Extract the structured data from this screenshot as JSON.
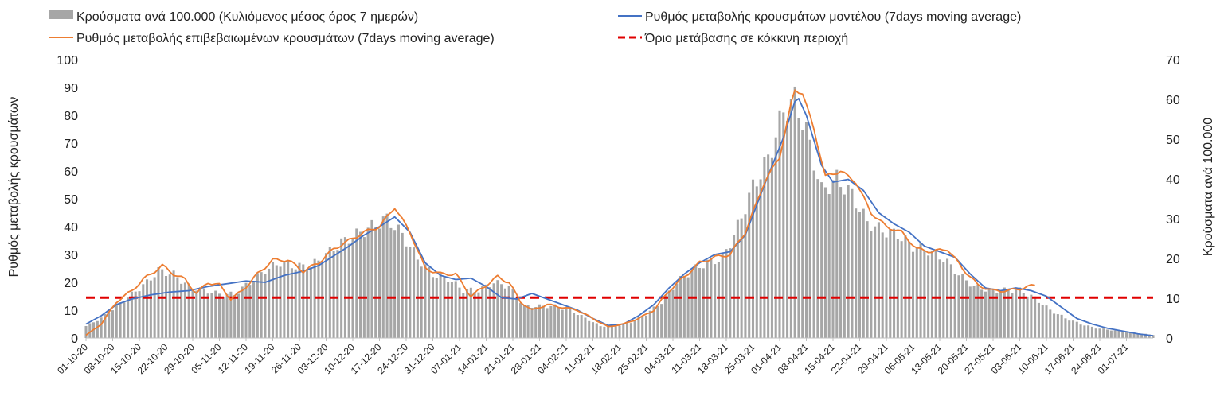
{
  "chart_data": {
    "type": "bar+line",
    "title": "",
    "legend": [
      {
        "key": "bars",
        "label": "Κρούσματα ανά 100.000 (Κυλιόμενος μέσος όρος 7 ημερών)",
        "color": "#a6a6a6",
        "kind": "bar"
      },
      {
        "key": "model",
        "label": "Ρυθμός μεταβολής κρουσμάτων μοντέλου (7days moving average)",
        "color": "#4472c4",
        "kind": "line"
      },
      {
        "key": "confirmed",
        "label": "Ρυθμός μεταβολής επιβεβαιωμένων κρουσμάτων (7days moving average)",
        "color": "#ed7d31",
        "kind": "line"
      },
      {
        "key": "threshold",
        "label": "Όριο μετάβασης σε κόκκινη περιοχή",
        "color": "#e00000",
        "kind": "dashed"
      }
    ],
    "ylabel_left": "Ρυθμός μεταβολής κρουσμάτων",
    "ylabel_right": "Κρούσματα ανά 100.000",
    "ylim_left": [
      0,
      100
    ],
    "yticks_left": [
      0,
      10,
      20,
      30,
      40,
      50,
      60,
      70,
      80,
      90,
      100
    ],
    "ylim_right": [
      0,
      70
    ],
    "yticks_right": [
      0,
      10,
      20,
      30,
      40,
      50,
      60,
      70
    ],
    "x_start": "2020-10-01",
    "x_end": "2021-07-08",
    "x_tick_labels": [
      "01-10-20",
      "08-10-20",
      "15-10-20",
      "22-10-20",
      "29-10-20",
      "05-11-20",
      "12-11-20",
      "19-11-20",
      "26-11-20",
      "03-12-20",
      "10-12-20",
      "17-12-20",
      "24-12-20",
      "31-12-20",
      "07-01-21",
      "14-01-21",
      "21-01-21",
      "28-01-21",
      "04-02-21",
      "11-02-21",
      "18-02-21",
      "25-02-21",
      "04-03-21",
      "11-03-21",
      "18-03-21",
      "25-03-21",
      "01-04-21",
      "08-04-21",
      "15-04-21",
      "22-04-21",
      "29-04-21",
      "06-05-21",
      "13-05-21",
      "20-05-21",
      "27-05-21",
      "03-06-21",
      "10-06-21",
      "17-06-21",
      "24-06-21",
      "01-07-21"
    ],
    "threshold_value": 14.5,
    "model_series": {
      "axis": "left",
      "points": [
        [
          "2020-10-01",
          5
        ],
        [
          "2020-10-05",
          8
        ],
        [
          "2020-10-09",
          12
        ],
        [
          "2020-10-13",
          14
        ],
        [
          "2020-10-18",
          15.5
        ],
        [
          "2020-10-23",
          16.5
        ],
        [
          "2020-10-28",
          17
        ],
        [
          "2020-11-02",
          18.5
        ],
        [
          "2020-11-07",
          19.5
        ],
        [
          "2020-11-12",
          20.5
        ],
        [
          "2020-11-17",
          20
        ],
        [
          "2020-11-22",
          22.5
        ],
        [
          "2020-11-27",
          24
        ],
        [
          "2020-12-01",
          26
        ],
        [
          "2020-12-05",
          29.5
        ],
        [
          "2020-12-09",
          33
        ],
        [
          "2020-12-13",
          37
        ],
        [
          "2020-12-17",
          40
        ],
        [
          "2020-12-21",
          43.5
        ],
        [
          "2020-12-25",
          38
        ],
        [
          "2020-12-29",
          27
        ],
        [
          "2021-01-02",
          22.5
        ],
        [
          "2021-01-06",
          21
        ],
        [
          "2021-01-10",
          21.5
        ],
        [
          "2021-01-14",
          18.5
        ],
        [
          "2021-01-18",
          14.5
        ],
        [
          "2021-01-22",
          14
        ],
        [
          "2021-01-26",
          16
        ],
        [
          "2021-01-30",
          14
        ],
        [
          "2021-02-03",
          12
        ],
        [
          "2021-02-07",
          10
        ],
        [
          "2021-02-11",
          7
        ],
        [
          "2021-02-15",
          4.5
        ],
        [
          "2021-02-19",
          5
        ],
        [
          "2021-02-23",
          8
        ],
        [
          "2021-02-27",
          12
        ],
        [
          "2021-03-03",
          18
        ],
        [
          "2021-03-07",
          23
        ],
        [
          "2021-03-11",
          27
        ],
        [
          "2021-03-15",
          30
        ],
        [
          "2021-03-19",
          31
        ],
        [
          "2021-03-23",
          37
        ],
        [
          "2021-03-28",
          55
        ],
        [
          "2021-04-02",
          72
        ],
        [
          "2021-04-05",
          85
        ],
        [
          "2021-04-06",
          86
        ],
        [
          "2021-04-08",
          80
        ],
        [
          "2021-04-12",
          62
        ],
        [
          "2021-04-15",
          56
        ],
        [
          "2021-04-19",
          57
        ],
        [
          "2021-04-23",
          53
        ],
        [
          "2021-04-27",
          45
        ],
        [
          "2021-05-01",
          41
        ],
        [
          "2021-05-05",
          38
        ],
        [
          "2021-05-09",
          33
        ],
        [
          "2021-05-13",
          31
        ],
        [
          "2021-05-17",
          29
        ],
        [
          "2021-05-21",
          23
        ],
        [
          "2021-05-25",
          18
        ],
        [
          "2021-05-29",
          17
        ],
        [
          "2021-06-02",
          18
        ],
        [
          "2021-06-06",
          17
        ],
        [
          "2021-06-10",
          15
        ],
        [
          "2021-06-14",
          11
        ],
        [
          "2021-06-18",
          7
        ],
        [
          "2021-06-22",
          5
        ],
        [
          "2021-06-26",
          3.5
        ],
        [
          "2021-06-30",
          2.5
        ],
        [
          "2021-07-04",
          1.5
        ],
        [
          "2021-07-08",
          0.8
        ]
      ]
    },
    "confirmed_series": {
      "axis": "left",
      "points": [
        [
          "2020-10-01",
          1
        ],
        [
          "2020-10-05",
          5
        ],
        [
          "2020-10-09",
          13
        ],
        [
          "2020-10-13",
          17
        ],
        [
          "2020-10-16",
          21
        ],
        [
          "2020-10-19",
          24
        ],
        [
          "2020-10-21",
          26
        ],
        [
          "2020-10-24",
          23
        ],
        [
          "2020-10-27",
          21
        ],
        [
          "2020-10-30",
          16
        ],
        [
          "2020-11-02",
          20
        ],
        [
          "2020-11-05",
          19
        ],
        [
          "2020-11-08",
          14
        ],
        [
          "2020-11-11",
          17
        ],
        [
          "2020-11-15",
          23
        ],
        [
          "2020-11-19",
          28
        ],
        [
          "2020-11-23",
          28
        ],
        [
          "2020-11-27",
          24
        ],
        [
          "2020-12-01",
          27
        ],
        [
          "2020-12-05",
          32
        ],
        [
          "2020-12-09",
          35
        ],
        [
          "2020-12-13",
          38
        ],
        [
          "2020-12-17",
          40
        ],
        [
          "2020-12-21",
          47
        ],
        [
          "2020-12-25",
          38
        ],
        [
          "2020-12-29",
          25
        ],
        [
          "2021-01-02",
          23
        ],
        [
          "2021-01-06",
          23
        ],
        [
          "2021-01-10",
          15
        ],
        [
          "2021-01-14",
          19
        ],
        [
          "2021-01-17",
          22
        ],
        [
          "2021-01-20",
          20
        ],
        [
          "2021-01-23",
          13
        ],
        [
          "2021-01-26",
          10
        ],
        [
          "2021-01-30",
          12
        ],
        [
          "2021-02-03",
          11
        ],
        [
          "2021-02-07",
          10
        ],
        [
          "2021-02-11",
          7
        ],
        [
          "2021-02-15",
          4
        ],
        [
          "2021-02-19",
          5
        ],
        [
          "2021-02-23",
          7
        ],
        [
          "2021-02-27",
          10
        ],
        [
          "2021-03-03",
          17
        ],
        [
          "2021-03-07",
          22
        ],
        [
          "2021-03-11",
          27
        ],
        [
          "2021-03-15",
          29
        ],
        [
          "2021-03-19",
          30
        ],
        [
          "2021-03-23",
          38
        ],
        [
          "2021-03-28",
          56
        ],
        [
          "2021-04-01",
          65
        ],
        [
          "2021-04-04",
          84
        ],
        [
          "2021-04-05",
          89
        ],
        [
          "2021-04-07",
          88
        ],
        [
          "2021-04-10",
          75
        ],
        [
          "2021-04-13",
          58
        ],
        [
          "2021-04-17",
          60
        ],
        [
          "2021-04-21",
          56
        ],
        [
          "2021-04-25",
          45
        ],
        [
          "2021-04-29",
          40
        ],
        [
          "2021-05-03",
          38
        ],
        [
          "2021-05-07",
          32
        ],
        [
          "2021-05-11",
          31
        ],
        [
          "2021-05-15",
          32
        ],
        [
          "2021-05-19",
          25
        ],
        [
          "2021-05-23",
          19
        ],
        [
          "2021-05-27",
          17
        ],
        [
          "2021-05-31",
          17
        ],
        [
          "2021-06-04",
          18
        ],
        [
          "2021-06-07",
          19
        ]
      ]
    },
    "cases_series": {
      "axis": "right",
      "points": [
        [
          "2020-10-01",
          3
        ],
        [
          "2020-10-05",
          5
        ],
        [
          "2020-10-09",
          8
        ],
        [
          "2020-10-13",
          11
        ],
        [
          "2020-10-17",
          14
        ],
        [
          "2020-10-20",
          17
        ],
        [
          "2020-10-24",
          16
        ],
        [
          "2020-10-28",
          13
        ],
        [
          "2020-11-01",
          12
        ],
        [
          "2020-11-05",
          11
        ],
        [
          "2020-11-09",
          11
        ],
        [
          "2020-11-13",
          14
        ],
        [
          "2020-11-17",
          17
        ],
        [
          "2020-11-21",
          19
        ],
        [
          "2020-11-25",
          18
        ],
        [
          "2020-11-29",
          18
        ],
        [
          "2020-12-03",
          21
        ],
        [
          "2020-12-07",
          24
        ],
        [
          "2020-12-11",
          26
        ],
        [
          "2020-12-15",
          28
        ],
        [
          "2020-12-19",
          30
        ],
        [
          "2020-12-23",
          26
        ],
        [
          "2020-12-27",
          20
        ],
        [
          "2020-12-31",
          16
        ],
        [
          "2021-01-04",
          15
        ],
        [
          "2021-01-08",
          12
        ],
        [
          "2021-01-12",
          12
        ],
        [
          "2021-01-16",
          14
        ],
        [
          "2021-01-20",
          13
        ],
        [
          "2021-01-24",
          8
        ],
        [
          "2021-01-28",
          8
        ],
        [
          "2021-02-01",
          8
        ],
        [
          "2021-02-05",
          7
        ],
        [
          "2021-02-09",
          5
        ],
        [
          "2021-02-13",
          3
        ],
        [
          "2021-02-17",
          3
        ],
        [
          "2021-02-21",
          4
        ],
        [
          "2021-02-25",
          6
        ],
        [
          "2021-03-01",
          9
        ],
        [
          "2021-03-05",
          14
        ],
        [
          "2021-03-09",
          17
        ],
        [
          "2021-03-13",
          19
        ],
        [
          "2021-03-17",
          20
        ],
        [
          "2021-03-21",
          28
        ],
        [
          "2021-03-25",
          38
        ],
        [
          "2021-03-29",
          45
        ],
        [
          "2021-04-02",
          57
        ],
        [
          "2021-04-05",
          60
        ],
        [
          "2021-04-08",
          52
        ],
        [
          "2021-04-12",
          37
        ],
        [
          "2021-04-16",
          40
        ],
        [
          "2021-04-20",
          36
        ],
        [
          "2021-04-24",
          29
        ],
        [
          "2021-04-28",
          27
        ],
        [
          "2021-05-02",
          26
        ],
        [
          "2021-05-06",
          23
        ],
        [
          "2021-05-10",
          22
        ],
        [
          "2021-05-14",
          20
        ],
        [
          "2021-05-18",
          16
        ],
        [
          "2021-05-22",
          13
        ],
        [
          "2021-05-26",
          12
        ],
        [
          "2021-05-30",
          12
        ],
        [
          "2021-06-03",
          12
        ],
        [
          "2021-06-07",
          10
        ],
        [
          "2021-06-11",
          7
        ],
        [
          "2021-06-15",
          5
        ],
        [
          "2021-06-19",
          3.5
        ],
        [
          "2021-06-23",
          2.5
        ],
        [
          "2021-06-27",
          2
        ],
        [
          "2021-07-01",
          1.5
        ],
        [
          "2021-07-08",
          0.8
        ]
      ]
    }
  }
}
